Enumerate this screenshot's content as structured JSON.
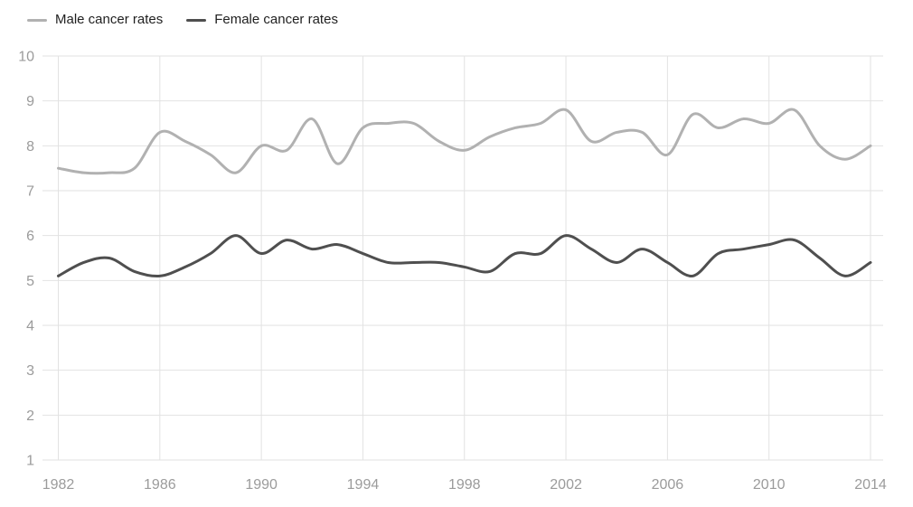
{
  "chart_data": {
    "type": "line",
    "title": "",
    "xlabel": "",
    "ylabel": "",
    "x": [
      1982,
      1983,
      1984,
      1985,
      1986,
      1987,
      1988,
      1989,
      1990,
      1991,
      1992,
      1993,
      1994,
      1995,
      1996,
      1997,
      1998,
      1999,
      2000,
      2001,
      2002,
      2003,
      2004,
      2005,
      2006,
      2007,
      2008,
      2009,
      2010,
      2011,
      2012,
      2013,
      2014
    ],
    "series": [
      {
        "name": "Male cancer rates",
        "color": "#b1b1b1",
        "values": [
          7.5,
          7.4,
          7.4,
          7.5,
          8.3,
          8.1,
          7.8,
          7.4,
          8.0,
          7.9,
          8.6,
          7.6,
          8.4,
          8.5,
          8.5,
          8.1,
          7.9,
          8.2,
          8.4,
          8.5,
          8.8,
          8.1,
          8.3,
          8.3,
          7.8,
          8.7,
          8.4,
          8.6,
          8.5,
          8.8,
          8.0,
          7.7,
          8.0
        ]
      },
      {
        "name": "Female cancer rates",
        "color": "#4f4f4f",
        "values": [
          5.1,
          5.4,
          5.5,
          5.2,
          5.1,
          5.3,
          5.6,
          6.0,
          5.6,
          5.9,
          5.7,
          5.8,
          5.6,
          5.4,
          5.4,
          5.4,
          5.3,
          5.2,
          5.6,
          5.6,
          6.0,
          5.7,
          5.4,
          5.7,
          5.4,
          5.1,
          5.6,
          5.7,
          5.8,
          5.9,
          5.5,
          5.1,
          5.4
        ]
      }
    ],
    "ylim": [
      1,
      10
    ],
    "yticks": [
      1,
      2,
      3,
      4,
      5,
      6,
      7,
      8,
      9,
      10
    ],
    "xticks": [
      1982,
      1986,
      1990,
      1994,
      1998,
      2002,
      2006,
      2010,
      2014
    ],
    "grid": true,
    "legend_position": "top-left"
  },
  "colors": {
    "background": "#ffffff",
    "gridline": "#e2e2e2",
    "tick_label": "#9b9b9b",
    "legend_text": "#1f1f1f"
  }
}
